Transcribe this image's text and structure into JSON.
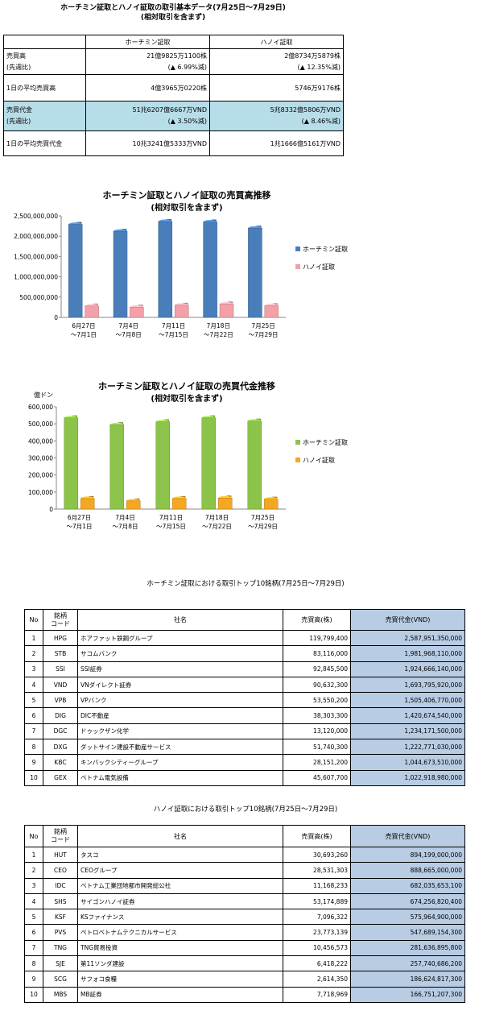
{
  "summary": {
    "title": "ホーチミン証取とハノイ証取の取引基本データ(7月25日～7月29日)",
    "subtitle": "(相対取引を含まず)",
    "col_hcm": "ホーチミン証取",
    "col_hn": "ハノイ証取",
    "rows": [
      {
        "label1": "売買高",
        "label2": "(先週比)",
        "hcm1": "21億9825万1100株",
        "hcm2": "(▲ 6.99%減)",
        "hn1": "2億8734万5879株",
        "hn2": "(▲ 12.35%減)"
      },
      {
        "label1": "1日の平均売買高",
        "hcm1": "4億3965万0220株",
        "hn1": "5746万9176株"
      },
      {
        "label1": "売買代金",
        "label2": "(先週比)",
        "hcm1": "51兆6207億6667万VND",
        "hcm2": "(▲ 3.50%減)",
        "hn1": "5兆8332億5806万VND",
        "hn2": "(▲ 8.46%減)"
      },
      {
        "label1": "1日の平均売買代金",
        "hcm1": "10兆3241億5333万VND",
        "hn1": "1兆1666億5161万VND"
      }
    ]
  },
  "chart_data": [
    {
      "type": "bar",
      "title": "ホーチミン証取とハノイ証取の売買高推移",
      "subtitle": "(相対取引を含まず)",
      "ylabel": "",
      "categories": [
        [
          "6月27日",
          "～7月1日"
        ],
        [
          "7月4日",
          "～7月8日"
        ],
        [
          "7月11日",
          "～7月15日"
        ],
        [
          "7月18日",
          "～7月22日"
        ],
        [
          "7月25日",
          "～7月29日"
        ]
      ],
      "ylim": [
        0,
        2500000000
      ],
      "yticks": [
        0,
        500000000,
        1000000000,
        1500000000,
        2000000000,
        2500000000
      ],
      "ytick_labels": [
        "0",
        "500,000,000",
        "1,000,000,000",
        "1,500,000,000",
        "2,000,000,000",
        "2,500,000,000"
      ],
      "series": [
        {
          "name": "ホーチミン証取",
          "color": "#4a7ebb",
          "values": [
            2290000000,
            2120000000,
            2360000000,
            2350000000,
            2198251100
          ]
        },
        {
          "name": "ハノイ証取",
          "color": "#f4a0a8",
          "values": [
            280000000,
            250000000,
            300000000,
            330000000,
            287345879
          ]
        }
      ],
      "legend": "right",
      "grid": false
    },
    {
      "type": "bar",
      "title": "ホーチミン証取とハノイ証取の売買代金推移",
      "subtitle": "(相対取引を含まず)",
      "ylabel": "億ドン",
      "categories": [
        [
          "6月27日",
          "～7月1日"
        ],
        [
          "7月4日",
          "～7月8日"
        ],
        [
          "7月11日",
          "～7月15日"
        ],
        [
          "7月18日",
          "～7月22日"
        ],
        [
          "7月25日",
          "～7月29日"
        ]
      ],
      "ylim": [
        0,
        600000
      ],
      "yticks": [
        0,
        100000,
        200000,
        300000,
        400000,
        500000,
        600000
      ],
      "ytick_labels": [
        "0",
        "100,000",
        "200,000",
        "300,000",
        "400,000",
        "500,000",
        "600,000"
      ],
      "series": [
        {
          "name": "ホーチミン証取",
          "color": "#8cc34a",
          "values": [
            535000,
            495000,
            512000,
            535000,
            516208
          ]
        },
        {
          "name": "ハノイ証取",
          "color": "#f5a623",
          "values": [
            62000,
            48000,
            62000,
            65000,
            58333
          ]
        }
      ],
      "legend": "right",
      "grid": false
    }
  ],
  "hcm_top": {
    "title": "ホーチミン証取における取引トップ10銘柄(7月25日～7月29日)",
    "headers": {
      "no": "No",
      "code1": "銘柄",
      "code2": "コード",
      "name": "社名",
      "volume": "売買高(株)",
      "value": "売買代金(VND)"
    },
    "rows": [
      {
        "no": "1",
        "code": "HPG",
        "name": "ホアファット鉄鋼グループ",
        "volume": "119,799,400",
        "value": "2,587,951,350,000"
      },
      {
        "no": "2",
        "code": "STB",
        "name": "サコムバンク",
        "volume": "83,116,000",
        "value": "1,981,968,110,000"
      },
      {
        "no": "3",
        "code": "SSI",
        "name": "SSI証券",
        "volume": "92,845,500",
        "value": "1,924,666,140,000"
      },
      {
        "no": "4",
        "code": "VND",
        "name": "VNダイレクト証券",
        "volume": "90,632,300",
        "value": "1,693,795,920,000"
      },
      {
        "no": "5",
        "code": "VPB",
        "name": "VPバンク",
        "volume": "53,550,200",
        "value": "1,505,406,770,000"
      },
      {
        "no": "6",
        "code": "DIG",
        "name": "DIC不動産",
        "volume": "38,303,300",
        "value": "1,420,674,540,000"
      },
      {
        "no": "7",
        "code": "DGC",
        "name": "ドゥックザン化学",
        "volume": "13,120,000",
        "value": "1,234,171,500,000"
      },
      {
        "no": "8",
        "code": "DXG",
        "name": "ダットサイン建設不動産サービス",
        "volume": "51,740,300",
        "value": "1,222,771,030,000"
      },
      {
        "no": "9",
        "code": "KBC",
        "name": "キンバックシティーグループ",
        "volume": "28,151,200",
        "value": "1,044,673,510,000"
      },
      {
        "no": "10",
        "code": "GEX",
        "name": "ベトナム電気設備",
        "volume": "45,607,700",
        "value": "1,022,918,980,000"
      }
    ]
  },
  "hn_top": {
    "title": "ハノイ証取における取引トップ10銘柄(7月25日～7月29日)",
    "headers": {
      "no": "No",
      "code1": "銘柄",
      "code2": "コード",
      "name": "社名",
      "volume": "売買高(株)",
      "value": "売買代金(VND)"
    },
    "rows": [
      {
        "no": "1",
        "code": "HUT",
        "name": "タスコ",
        "volume": "30,693,260",
        "value": "894,199,000,000"
      },
      {
        "no": "2",
        "code": "CEO",
        "name": "CEOグループ",
        "volume": "28,531,303",
        "value": "888,665,000,000"
      },
      {
        "no": "3",
        "code": "IDC",
        "name": "ベトナム工業団地都市開発総公社",
        "volume": "11,168,233",
        "value": "682,035,653,100"
      },
      {
        "no": "4",
        "code": "SHS",
        "name": "サイゴンハノイ証券",
        "volume": "53,174,889",
        "value": "674,256,820,400"
      },
      {
        "no": "5",
        "code": "KSF",
        "name": "KSファイナンス",
        "volume": "7,096,322",
        "value": "575,964,900,000"
      },
      {
        "no": "6",
        "code": "PVS",
        "name": "ペトロベトナムテクニカルサービス",
        "volume": "23,773,139",
        "value": "547,689,154,300"
      },
      {
        "no": "7",
        "code": "TNG",
        "name": "TNG貿易投資",
        "volume": "10,456,573",
        "value": "281,636,895,800"
      },
      {
        "no": "8",
        "code": "SJE",
        "name": "第11ソンダ建設",
        "volume": "6,418,222",
        "value": "257,740,686,200"
      },
      {
        "no": "9",
        "code": "SCG",
        "name": "サフォコ食糧",
        "volume": "2,614,350",
        "value": "186,624,817,300"
      },
      {
        "no": "10",
        "code": "MBS",
        "name": "MB証券",
        "volume": "7,718,969",
        "value": "166,751,207,300"
      }
    ]
  }
}
